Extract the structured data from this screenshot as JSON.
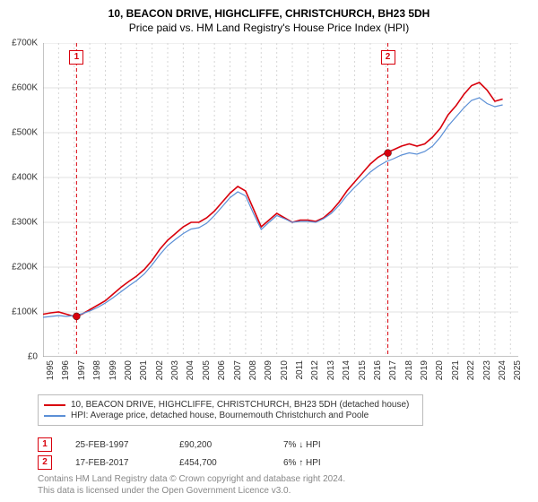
{
  "title_line1": "10, BEACON DRIVE, HIGHCLIFFE, CHRISTCHURCH, BH23 5DH",
  "title_line2": "Price paid vs. HM Land Registry's House Price Index (HPI)",
  "chart": {
    "type": "line",
    "background_color": "#ffffff",
    "grid_color": "#e0e0e0",
    "axis_color": "#888888",
    "x_years": [
      1995,
      1996,
      1997,
      1998,
      1999,
      2000,
      2001,
      2002,
      2003,
      2004,
      2005,
      2006,
      2007,
      2008,
      2009,
      2010,
      2011,
      2012,
      2013,
      2014,
      2015,
      2016,
      2017,
      2018,
      2019,
      2020,
      2021,
      2022,
      2023,
      2024,
      2025
    ],
    "y_ticks": [
      0,
      100000,
      200000,
      300000,
      400000,
      500000,
      600000,
      700000
    ],
    "y_tick_labels": [
      "£0",
      "£100K",
      "£200K",
      "£300K",
      "£400K",
      "£500K",
      "£600K",
      "£700K"
    ],
    "ylim": [
      0,
      700000
    ],
    "xlim": [
      1995,
      2025.5
    ],
    "label_fontsize": 10,
    "series": [
      {
        "name": "red",
        "color": "#d8000c",
        "width": 1.6,
        "data": [
          [
            1995,
            95000
          ],
          [
            1995.5,
            98000
          ],
          [
            1996,
            100000
          ],
          [
            1996.5,
            95000
          ],
          [
            1997,
            90000
          ],
          [
            1997.5,
            95000
          ],
          [
            1998,
            105000
          ],
          [
            1998.5,
            115000
          ],
          [
            1999,
            125000
          ],
          [
            1999.5,
            140000
          ],
          [
            2000,
            155000
          ],
          [
            2000.5,
            168000
          ],
          [
            2001,
            180000
          ],
          [
            2001.5,
            195000
          ],
          [
            2002,
            215000
          ],
          [
            2002.5,
            240000
          ],
          [
            2003,
            260000
          ],
          [
            2003.5,
            275000
          ],
          [
            2004,
            290000
          ],
          [
            2004.5,
            300000
          ],
          [
            2005,
            300000
          ],
          [
            2005.5,
            310000
          ],
          [
            2006,
            325000
          ],
          [
            2006.5,
            345000
          ],
          [
            2007,
            365000
          ],
          [
            2007.5,
            380000
          ],
          [
            2008,
            370000
          ],
          [
            2008.5,
            330000
          ],
          [
            2009,
            290000
          ],
          [
            2009.5,
            305000
          ],
          [
            2010,
            320000
          ],
          [
            2010.5,
            310000
          ],
          [
            2011,
            300000
          ],
          [
            2011.5,
            305000
          ],
          [
            2012,
            305000
          ],
          [
            2012.5,
            302000
          ],
          [
            2013,
            310000
          ],
          [
            2013.5,
            325000
          ],
          [
            2014,
            345000
          ],
          [
            2014.5,
            370000
          ],
          [
            2015,
            390000
          ],
          [
            2015.5,
            410000
          ],
          [
            2016,
            430000
          ],
          [
            2016.5,
            445000
          ],
          [
            2017,
            455000
          ],
          [
            2017.5,
            462000
          ],
          [
            2018,
            470000
          ],
          [
            2018.5,
            475000
          ],
          [
            2019,
            470000
          ],
          [
            2019.5,
            475000
          ],
          [
            2020,
            490000
          ],
          [
            2020.5,
            510000
          ],
          [
            2021,
            540000
          ],
          [
            2021.5,
            560000
          ],
          [
            2022,
            585000
          ],
          [
            2022.5,
            605000
          ],
          [
            2023,
            612000
          ],
          [
            2023.5,
            595000
          ],
          [
            2024,
            570000
          ],
          [
            2024.5,
            575000
          ]
        ]
      },
      {
        "name": "blue",
        "color": "#5b8fd6",
        "width": 1.2,
        "data": [
          [
            1995,
            88000
          ],
          [
            1995.5,
            90000
          ],
          [
            1996,
            92000
          ],
          [
            1996.5,
            90000
          ],
          [
            1997,
            92000
          ],
          [
            1997.5,
            96000
          ],
          [
            1998,
            102000
          ],
          [
            1998.5,
            110000
          ],
          [
            1999,
            120000
          ],
          [
            1999.5,
            132000
          ],
          [
            2000,
            145000
          ],
          [
            2000.5,
            158000
          ],
          [
            2001,
            170000
          ],
          [
            2001.5,
            185000
          ],
          [
            2002,
            205000
          ],
          [
            2002.5,
            228000
          ],
          [
            2003,
            248000
          ],
          [
            2003.5,
            262000
          ],
          [
            2004,
            275000
          ],
          [
            2004.5,
            285000
          ],
          [
            2005,
            288000
          ],
          [
            2005.5,
            298000
          ],
          [
            2006,
            315000
          ],
          [
            2006.5,
            335000
          ],
          [
            2007,
            355000
          ],
          [
            2007.5,
            368000
          ],
          [
            2008,
            359000
          ],
          [
            2008.5,
            320000
          ],
          [
            2009,
            284000
          ],
          [
            2009.5,
            300000
          ],
          [
            2010,
            315000
          ],
          [
            2010.5,
            308000
          ],
          [
            2011,
            300000
          ],
          [
            2011.5,
            302000
          ],
          [
            2012,
            302000
          ],
          [
            2012.5,
            300000
          ],
          [
            2013,
            308000
          ],
          [
            2013.5,
            320000
          ],
          [
            2014,
            338000
          ],
          [
            2014.5,
            360000
          ],
          [
            2015,
            378000
          ],
          [
            2015.5,
            395000
          ],
          [
            2016,
            412000
          ],
          [
            2016.5,
            425000
          ],
          [
            2017,
            435000
          ],
          [
            2017.5,
            442000
          ],
          [
            2018,
            450000
          ],
          [
            2018.5,
            455000
          ],
          [
            2019,
            452000
          ],
          [
            2019.5,
            458000
          ],
          [
            2020,
            470000
          ],
          [
            2020.5,
            490000
          ],
          [
            2021,
            515000
          ],
          [
            2021.5,
            535000
          ],
          [
            2022,
            555000
          ],
          [
            2022.5,
            572000
          ],
          [
            2023,
            578000
          ],
          [
            2023.5,
            565000
          ],
          [
            2024,
            558000
          ],
          [
            2024.5,
            562000
          ]
        ]
      }
    ],
    "markers": [
      {
        "x": 1997.15,
        "y": 90200,
        "fill": "#d8000c"
      },
      {
        "x": 2017.13,
        "y": 454700,
        "fill": "#d8000c"
      }
    ],
    "events": [
      {
        "id": "1",
        "x": 1997.15,
        "color": "#d8000c"
      },
      {
        "id": "2",
        "x": 2017.13,
        "color": "#d8000c"
      }
    ]
  },
  "legend": {
    "red_color": "#d8000c",
    "blue_color": "#5b8fd6",
    "red_label": "10, BEACON DRIVE, HIGHCLIFFE, CHRISTCHURCH, BH23 5DH (detached house)",
    "blue_label": "HPI: Average price, detached house, Bournemouth Christchurch and Poole"
  },
  "notes": [
    {
      "id": "1",
      "color": "#d8000c",
      "date": "25-FEB-1997",
      "price": "£90,200",
      "pct": "7% ↓ HPI"
    },
    {
      "id": "2",
      "color": "#d8000c",
      "date": "17-FEB-2017",
      "price": "£454,700",
      "pct": "6% ↑ HPI"
    }
  ],
  "footer_line1": "Contains HM Land Registry data © Crown copyright and database right 2024.",
  "footer_line2": "This data is licensed under the Open Government Licence v3.0."
}
